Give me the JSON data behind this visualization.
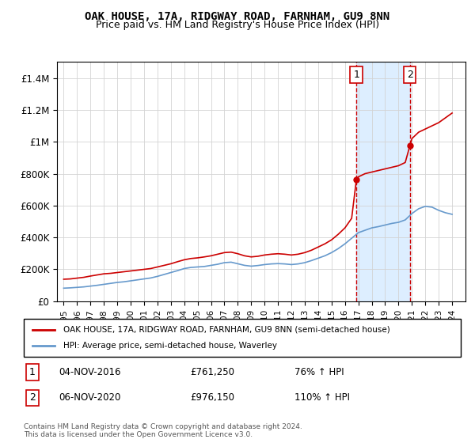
{
  "title": "OAK HOUSE, 17A, RIDGWAY ROAD, FARNHAM, GU9 8NN",
  "subtitle": "Price paid vs. HM Land Registry's House Price Index (HPI)",
  "legend_line1": "OAK HOUSE, 17A, RIDGWAY ROAD, FARNHAM, GU9 8NN (semi-detached house)",
  "legend_line2": "HPI: Average price, semi-detached house, Waverley",
  "annotation1_label": "1",
  "annotation1_date": "04-NOV-2016",
  "annotation1_price": "£761,250",
  "annotation1_hpi": "76% ↑ HPI",
  "annotation1_year": 2016.85,
  "annotation2_label": "2",
  "annotation2_date": "06-NOV-2020",
  "annotation2_price": "£976,150",
  "annotation2_hpi": "110% ↑ HPI",
  "annotation2_year": 2020.85,
  "footer": "Contains HM Land Registry data © Crown copyright and database right 2024.\nThis data is licensed under the Open Government Licence v3.0.",
  "red_line_color": "#cc0000",
  "blue_line_color": "#6699cc",
  "shade_color": "#ddeeff",
  "ylim": [
    0,
    1500000
  ],
  "xlim_start": 1995,
  "xlim_end": 2025,
  "red_years": [
    1995.0,
    1995.5,
    1996.0,
    1996.5,
    1997.0,
    1997.5,
    1998.0,
    1998.5,
    1999.0,
    1999.5,
    2000.0,
    2000.5,
    2001.0,
    2001.5,
    2002.0,
    2002.5,
    2003.0,
    2003.5,
    2004.0,
    2004.5,
    2005.0,
    2005.5,
    2006.0,
    2006.5,
    2007.0,
    2007.5,
    2008.0,
    2008.5,
    2009.0,
    2009.5,
    2010.0,
    2010.5,
    2011.0,
    2011.5,
    2012.0,
    2012.5,
    2013.0,
    2013.5,
    2014.0,
    2014.5,
    2015.0,
    2015.5,
    2016.0,
    2016.5,
    2016.85,
    2017.0,
    2017.5,
    2018.0,
    2018.5,
    2019.0,
    2019.5,
    2020.0,
    2020.5,
    2020.85,
    2021.0,
    2021.5,
    2022.0,
    2022.5,
    2023.0,
    2023.5,
    2024.0
  ],
  "red_values": [
    138000,
    140000,
    145000,
    150000,
    158000,
    165000,
    172000,
    175000,
    180000,
    185000,
    190000,
    195000,
    200000,
    205000,
    215000,
    225000,
    235000,
    248000,
    260000,
    268000,
    272000,
    278000,
    285000,
    295000,
    305000,
    308000,
    298000,
    285000,
    278000,
    282000,
    290000,
    295000,
    298000,
    295000,
    290000,
    295000,
    305000,
    320000,
    340000,
    360000,
    385000,
    420000,
    460000,
    520000,
    761250,
    780000,
    800000,
    810000,
    820000,
    830000,
    840000,
    850000,
    870000,
    976150,
    1020000,
    1060000,
    1080000,
    1100000,
    1120000,
    1150000,
    1180000
  ],
  "blue_years": [
    1995.0,
    1995.5,
    1996.0,
    1996.5,
    1997.0,
    1997.5,
    1998.0,
    1998.5,
    1999.0,
    1999.5,
    2000.0,
    2000.5,
    2001.0,
    2001.5,
    2002.0,
    2002.5,
    2003.0,
    2003.5,
    2004.0,
    2004.5,
    2005.0,
    2005.5,
    2006.0,
    2006.5,
    2007.0,
    2007.5,
    2008.0,
    2008.5,
    2009.0,
    2009.5,
    2010.0,
    2010.5,
    2011.0,
    2011.5,
    2012.0,
    2012.5,
    2013.0,
    2013.5,
    2014.0,
    2014.5,
    2015.0,
    2015.5,
    2016.0,
    2016.5,
    2017.0,
    2017.5,
    2018.0,
    2018.5,
    2019.0,
    2019.5,
    2020.0,
    2020.5,
    2021.0,
    2021.5,
    2022.0,
    2022.5,
    2023.0,
    2023.5,
    2024.0
  ],
  "blue_values": [
    82000,
    84000,
    87000,
    90000,
    95000,
    100000,
    106000,
    112000,
    118000,
    122000,
    128000,
    134000,
    140000,
    146000,
    156000,
    168000,
    180000,
    192000,
    205000,
    212000,
    215000,
    218000,
    225000,
    232000,
    242000,
    245000,
    235000,
    225000,
    220000,
    224000,
    230000,
    234000,
    236000,
    234000,
    230000,
    234000,
    242000,
    255000,
    270000,
    285000,
    305000,
    330000,
    360000,
    395000,
    430000,
    445000,
    460000,
    468000,
    478000,
    488000,
    495000,
    510000,
    550000,
    580000,
    595000,
    590000,
    570000,
    555000,
    545000
  ]
}
